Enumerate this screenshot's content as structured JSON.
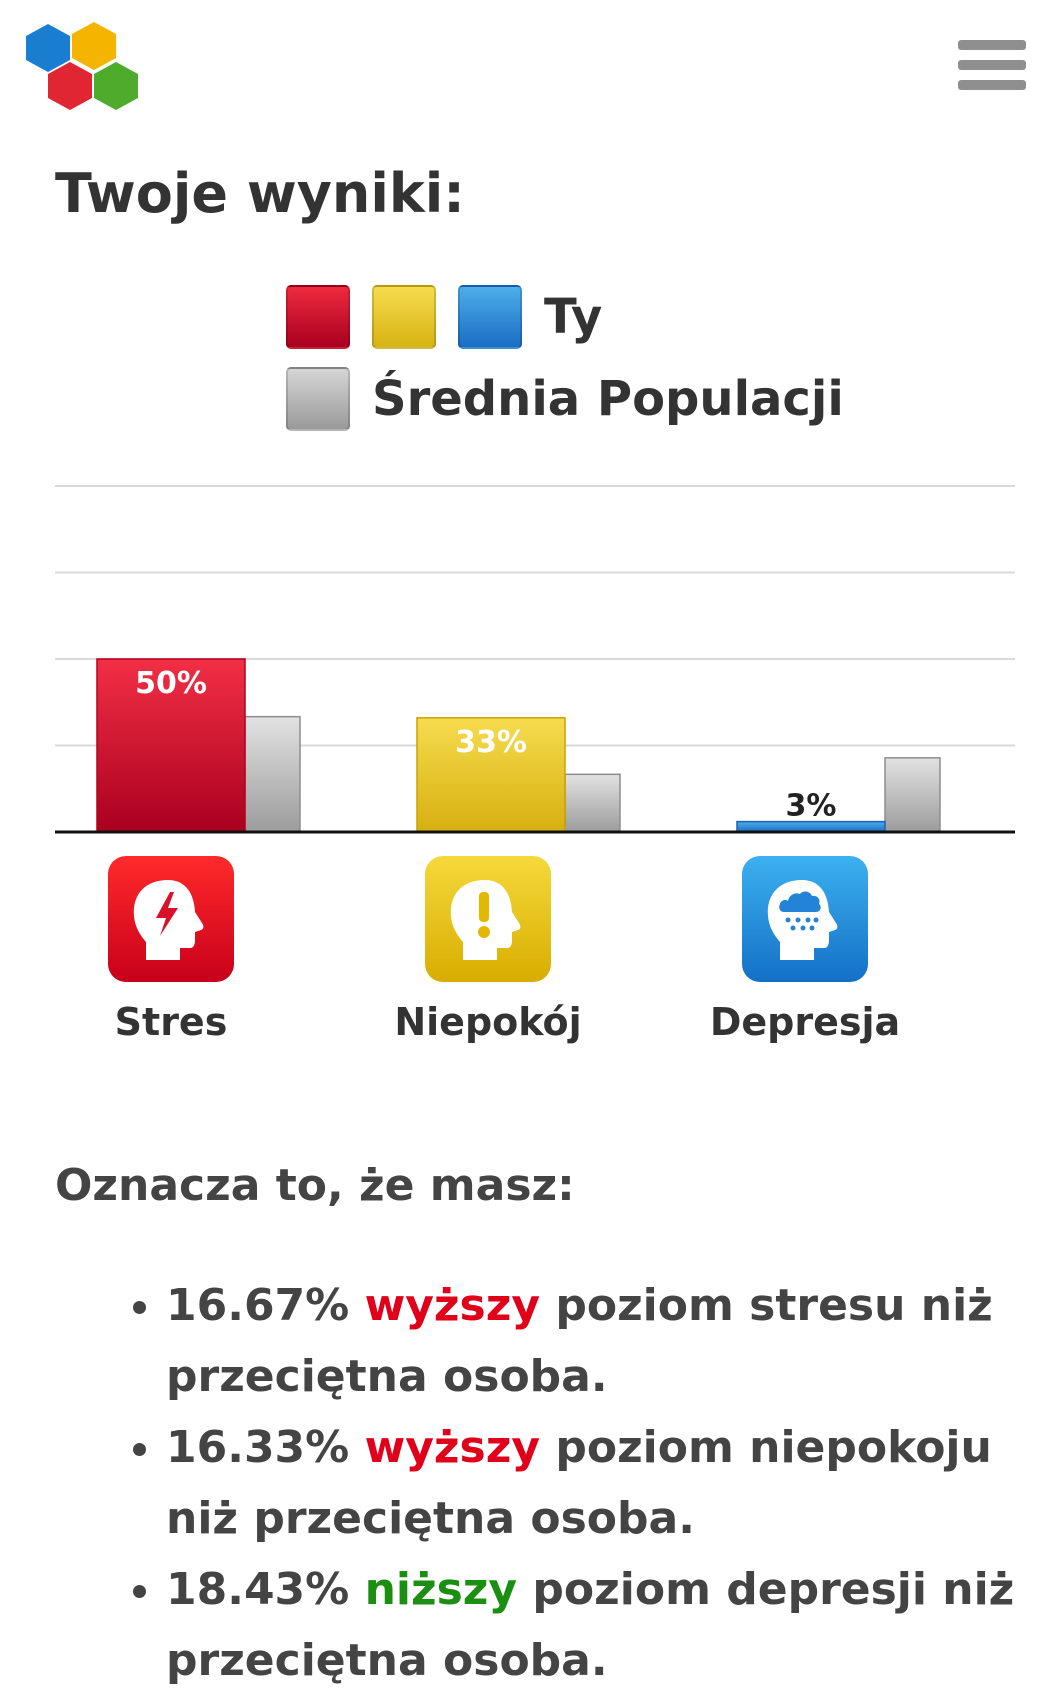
{
  "header": {
    "logo_icon": "hexagon-logo-icon",
    "menu_icon": "hamburger-menu-icon"
  },
  "title": "Twoje wyniki:",
  "legend": {
    "you_label": "Ty",
    "population_label": "Średnia Populacji"
  },
  "colors": {
    "stres": "#d8102a",
    "niepokoj": "#e8c829",
    "depresja": "#2383d6",
    "population": "#b5b5b5",
    "higher": "#e0001a",
    "lower": "#1a8f12"
  },
  "chart_data": {
    "type": "bar",
    "categories": [
      "Stres",
      "Niepokój",
      "Depresja"
    ],
    "series": [
      {
        "name": "Ty",
        "values": [
          50,
          33,
          3
        ]
      },
      {
        "name": "Średnia Populacji",
        "values": [
          33.33,
          16.67,
          21.43
        ]
      }
    ],
    "data_labels": [
      "50%",
      "33%",
      "3%"
    ],
    "ylim": [
      0,
      100
    ],
    "grid": true,
    "category_icons": [
      "stress-head-icon",
      "anxiety-head-icon",
      "depression-head-icon"
    ]
  },
  "summary": {
    "heading": "Oznacza to, że masz:",
    "items": [
      {
        "value": "16.67%",
        "direction": "wyższy",
        "rest": "poziom stresu niż przeciętna osoba."
      },
      {
        "value": "16.33%",
        "direction": "wyższy",
        "rest": "poziom niepokoju niż przeciętna osoba."
      },
      {
        "value": "18.43%",
        "direction": "niższy",
        "rest": "poziom depresji niż przeciętna osoba."
      }
    ]
  }
}
